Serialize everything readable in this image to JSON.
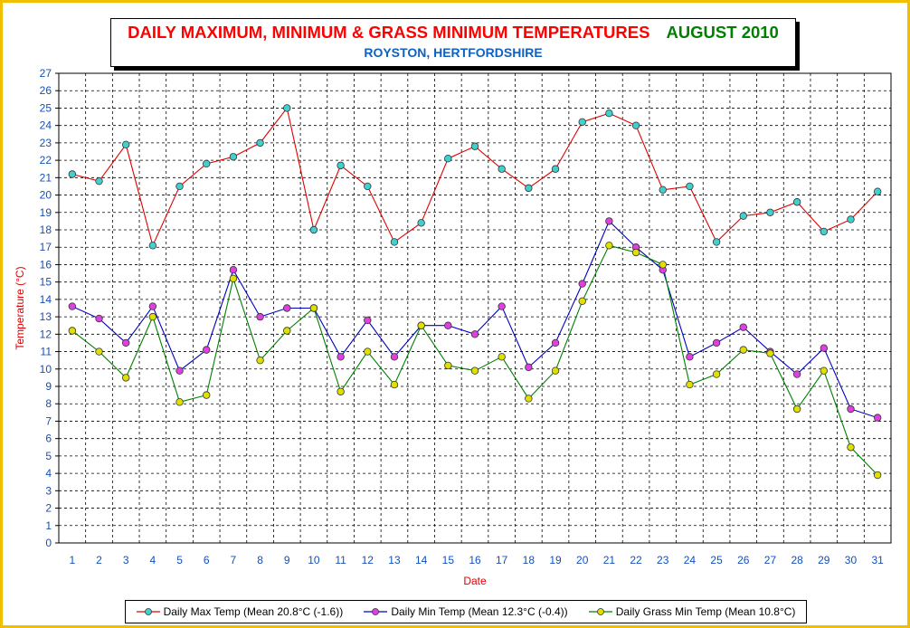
{
  "chart_data": {
    "type": "line",
    "title": "DAILY MAXIMUM, MINIMUM & GRASS MINIMUM TEMPERATURES",
    "title_date": "AUGUST 2010",
    "subtitle": "ROYSTON, HERTFORDSHIRE",
    "xlabel": "Date",
    "ylabel": "Temperature (°C)",
    "ylim": [
      0,
      27
    ],
    "grid": true,
    "legend_position": "bottom",
    "x": [
      1,
      2,
      3,
      4,
      5,
      6,
      7,
      8,
      9,
      10,
      11,
      12,
      13,
      14,
      15,
      16,
      17,
      18,
      19,
      20,
      21,
      22,
      23,
      24,
      25,
      26,
      27,
      28,
      29,
      30,
      31
    ],
    "series": [
      {
        "name": "Daily Max Temp (Mean 20.8°C (-1.6))",
        "line_color": "#e00000",
        "marker_color": "#40d0d0",
        "values": [
          21.2,
          20.8,
          22.9,
          17.1,
          20.5,
          21.8,
          22.2,
          23.0,
          25.0,
          18.0,
          21.7,
          20.5,
          17.3,
          18.4,
          22.1,
          22.8,
          21.5,
          20.4,
          21.5,
          24.2,
          24.7,
          24.0,
          20.3,
          20.5,
          17.3,
          18.8,
          19.0,
          19.6,
          17.9,
          18.6,
          20.2
        ]
      },
      {
        "name": "Daily Min Temp (Mean 12.3°C (-0.4))",
        "line_color": "#0000c0",
        "marker_color": "#e040e0",
        "values": [
          13.6,
          12.9,
          11.5,
          13.6,
          9.9,
          11.1,
          15.7,
          13.0,
          13.5,
          13.5,
          10.7,
          12.8,
          10.7,
          12.5,
          12.5,
          12.0,
          13.6,
          10.1,
          11.5,
          14.9,
          18.5,
          17.0,
          15.7,
          10.7,
          11.5,
          12.4,
          11.0,
          9.7,
          11.2,
          7.7,
          7.2
        ]
      },
      {
        "name": "Daily Grass Min Temp (Mean 10.8°C)",
        "line_color": "#008000",
        "marker_color": "#e0e000",
        "values": [
          12.2,
          11.0,
          9.5,
          13.0,
          8.1,
          8.5,
          15.2,
          10.5,
          12.2,
          13.5,
          8.7,
          11.0,
          9.1,
          12.5,
          10.2,
          9.9,
          10.7,
          8.3,
          9.9,
          13.9,
          17.1,
          16.7,
          16.0,
          9.1,
          9.7,
          11.1,
          10.9,
          7.7,
          9.9,
          5.5,
          3.9
        ]
      }
    ]
  }
}
